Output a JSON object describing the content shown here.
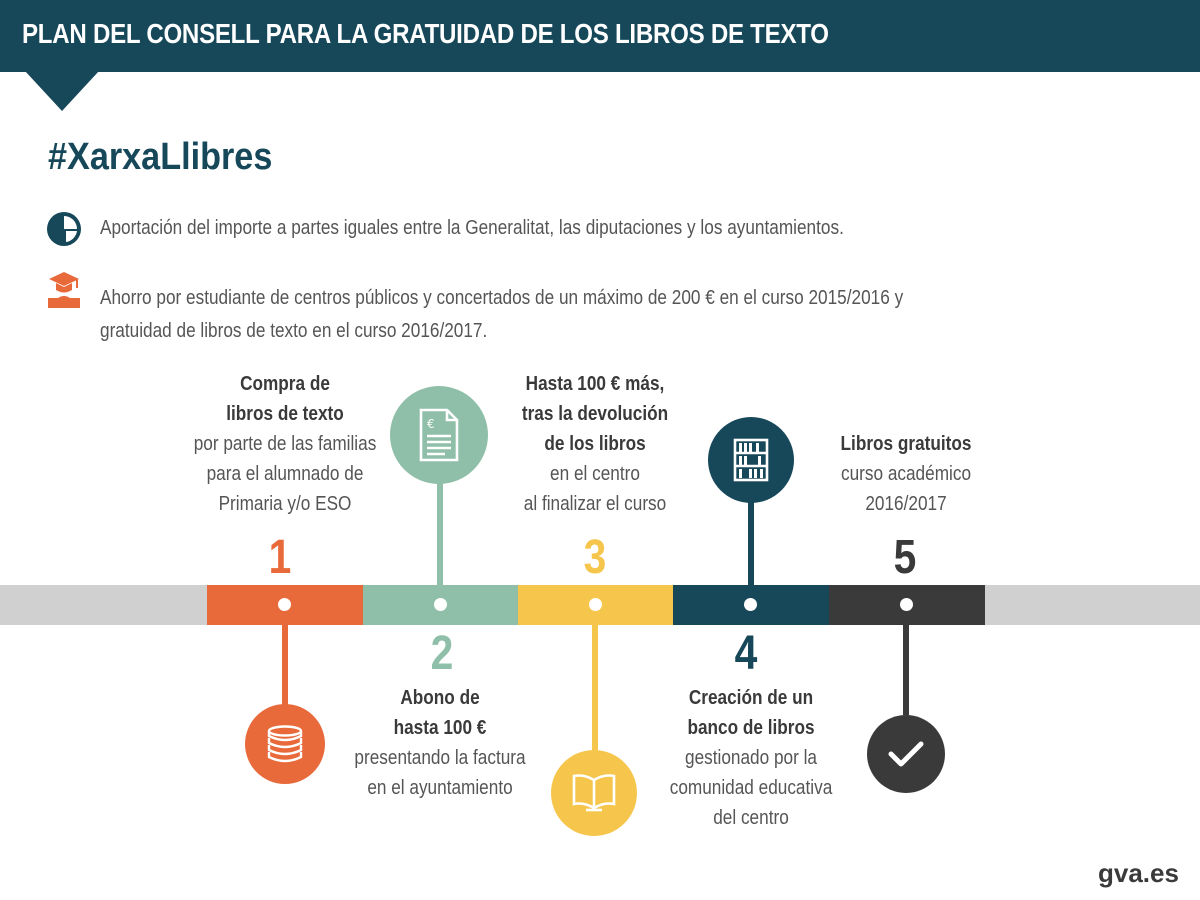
{
  "header": {
    "title": "PLAN DEL CONSELL PARA LA GRATUIDAD DE LOS LIBROS DE TEXTO"
  },
  "hashtag": "#XarxaLlibres",
  "bullets": [
    {
      "icon": "pie-chart-icon",
      "lines": [
        "Aportación del importe a partes iguales entre la Generalitat, las diputaciones y los ayuntamientos."
      ]
    },
    {
      "icon": "graduation-cap-icon",
      "lines": [
        "Ahorro por estudiante de centros públicos y concertados de un máximo de 200 € en el curso 2015/2016 y",
        "gratuidad de libros de texto en el curso 2016/2017."
      ]
    }
  ],
  "steps": [
    {
      "number": "1",
      "color": "#e8693a",
      "icon": "coins-icon",
      "bold": [
        "Compra de",
        "libros de texto"
      ],
      "normal": [
        "por parte de las familias",
        "para  el alumnado de",
        "Primaria y/o ESO"
      ]
    },
    {
      "number": "2",
      "color": "#8fbfa8",
      "icon": "invoice-icon",
      "bold": [
        "Abono de",
        "hasta 100 €"
      ],
      "normal": [
        "presentando la factura",
        "en el ayuntamiento"
      ]
    },
    {
      "number": "3",
      "color": "#f6c64c",
      "icon": "open-book-icon",
      "bold": [
        "Hasta 100 € más,",
        "tras la devolución",
        "de los libros"
      ],
      "normal": [
        "en el centro",
        "al finalizar el curso"
      ]
    },
    {
      "number": "4",
      "color": "#16485a",
      "icon": "bookshelf-icon",
      "bold": [
        "Creación de un",
        "banco de libros"
      ],
      "normal": [
        "gestionado por la",
        "comunidad educativa",
        "del centro"
      ]
    },
    {
      "number": "5",
      "color": "#3a3a3a",
      "icon": "checkmark-icon",
      "bold": [
        "Libros gratuitos"
      ],
      "normal": [
        "curso académico",
        "2016/2017"
      ]
    }
  ],
  "footer": "gva.es"
}
